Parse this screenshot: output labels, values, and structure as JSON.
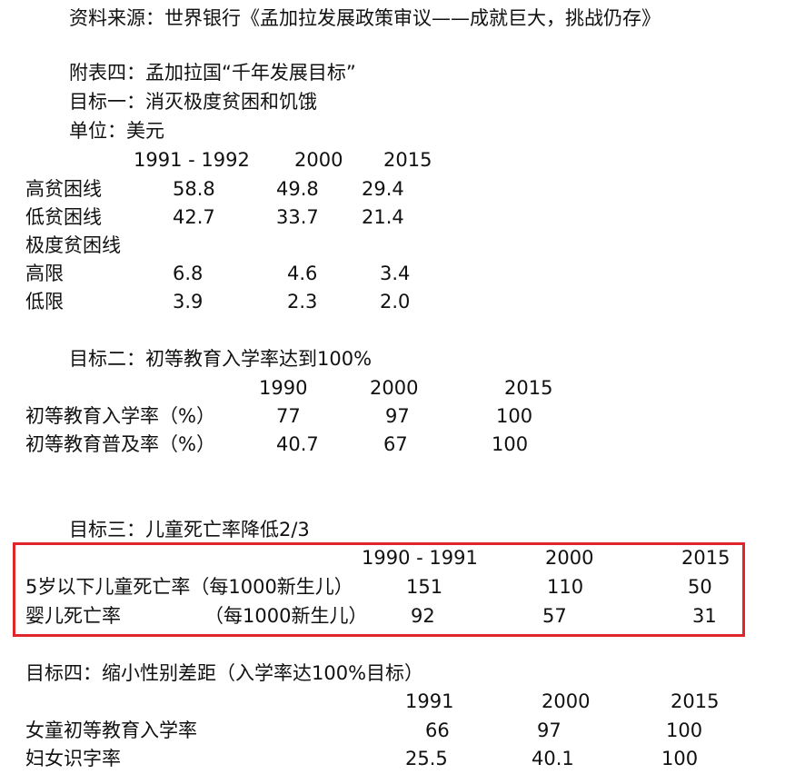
{
  "source_line": "资料来源：世界银行《孟加拉发展政策审议——成就巨大，挑战仍存》",
  "appendix_title": "附表四：孟加拉国“千年发展目标”",
  "goal1": {
    "title": "目标一：消灭极度贫困和饥饿",
    "unit": "单位：美元",
    "years": [
      "1991 - 1992",
      "2000",
      "2015"
    ],
    "rows": [
      {
        "label": "高贫困线",
        "values": [
          "58.8",
          "49.8",
          "29.4"
        ]
      },
      {
        "label": "低贫困线",
        "values": [
          "42.7",
          "33.7",
          "21.4"
        ]
      },
      {
        "label": "极度贫困线",
        "values": []
      },
      {
        "label": "高限",
        "values": [
          "6.8",
          "4.6",
          "3.4"
        ]
      },
      {
        "label": "低限",
        "values": [
          "3.9",
          "2.3",
          "2.0"
        ]
      }
    ]
  },
  "goal2": {
    "title": "目标二：初等教育入学率达到100%",
    "years": [
      "1990",
      "2000",
      "2015"
    ],
    "rows": [
      {
        "label": "初等教育入学率（%）",
        "values": [
          "77",
          "97",
          "100"
        ]
      },
      {
        "label": "初等教育普及率（%）",
        "values": [
          "40.7",
          "67",
          "100"
        ]
      }
    ]
  },
  "goal3": {
    "title": "目标三：儿童死亡率降低2/3",
    "years": [
      "1990 - 1991",
      "2000",
      "2015"
    ],
    "rows": [
      {
        "label": "5岁以下儿童死亡率（每1000新生儿）",
        "values": [
          "151",
          "110",
          "50"
        ]
      },
      {
        "label": "婴儿死亡率",
        "sublabel": "（每1000新生儿）",
        "values": [
          "92",
          "57",
          "31"
        ]
      }
    ],
    "highlight_color": "#e0252b"
  },
  "goal4": {
    "title": "目标四：缩小性别差距（入学率达100%目标）",
    "years": [
      "1991",
      "2000",
      "2015"
    ],
    "rows": [
      {
        "label": "女童初等教育入学率",
        "values": [
          "66",
          "97",
          "100"
        ]
      },
      {
        "label": "妇女识字率",
        "values": [
          "25.5",
          "40.1",
          "100"
        ]
      }
    ]
  }
}
